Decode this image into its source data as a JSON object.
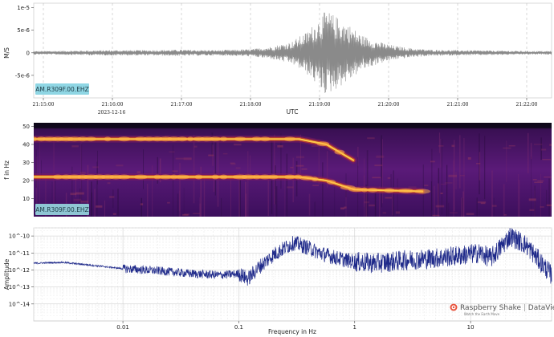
{
  "chart_data": [
    {
      "type": "line",
      "station_label": "AM.R309F.00.EHZ",
      "ylabel": "M/S",
      "xlabel": "UTC",
      "date_label": "2023-12-16",
      "x_ticks": [
        "21:15:00",
        "21:16:00",
        "21:17:00",
        "21:18:00",
        "21:19:00",
        "21:20:00",
        "21:21:00",
        "21:22:00"
      ],
      "y_ticks": [
        "1e-5",
        "5e-6",
        "0",
        "-5e-6"
      ],
      "ylim": [
        -1e-05,
        1.1e-05
      ],
      "envelope": {
        "x_minutes": [
          0,
          0.5,
          1,
          1.5,
          2,
          2.5,
          3,
          3.3,
          3.6,
          3.8,
          3.95,
          4.1,
          4.25,
          4.45,
          4.6,
          4.85,
          5.1,
          5.35,
          5.6,
          6,
          6.5,
          7,
          7.6
        ],
        "amplitude": [
          4e-07,
          5e-07,
          6e-07,
          6e-07,
          7e-07,
          6e-07,
          8e-07,
          1.4e-06,
          2.5e-06,
          4.5e-06,
          7e-06,
          9.5e-06,
          8e-06,
          6e-06,
          4e-06,
          2.5e-06,
          1.5e-06,
          1e-06,
          7e-07,
          6e-07,
          5e-07,
          4e-07,
          4e-07
        ]
      }
    },
    {
      "type": "heatmap",
      "station_label": "AM.R309F.00.EHZ",
      "ylabel": "f in Hz",
      "y_ticks": [
        "50",
        "40",
        "30",
        "20",
        "10"
      ],
      "ylim": [
        0,
        52
      ],
      "bands": [
        {
          "x_minutes": [
            0,
            3.7,
            4.1,
            4.5
          ],
          "freq_hz": [
            43,
            43,
            40,
            31
          ]
        },
        {
          "x_minutes": [
            0,
            3.7,
            4.1,
            4.5,
            5.5
          ],
          "freq_hz": [
            22,
            22,
            20,
            15,
            14
          ]
        }
      ]
    },
    {
      "type": "line",
      "ylabel": "Amplitude",
      "xlabel": "Frequency in Hz",
      "x_ticks": [
        "0.01",
        "0.1",
        "1",
        "10"
      ],
      "y_ticks": [
        "10^-10",
        "10^-11",
        "10^-12",
        "10^-13",
        "10^-14"
      ],
      "xscale": "log",
      "yscale": "log",
      "xlim": [
        0.0017,
        50
      ],
      "ylim": [
        1e-15,
        3e-10
      ],
      "x": [
        0.0017,
        0.003,
        0.005,
        0.01,
        0.02,
        0.04,
        0.07,
        0.1,
        0.12,
        0.15,
        0.2,
        0.25,
        0.3,
        0.4,
        0.5,
        0.7,
        1,
        1.5,
        2,
        3,
        5,
        8,
        12,
        15,
        18,
        22,
        30,
        50
      ],
      "y": [
        2.5e-12,
        2.8e-12,
        2e-12,
        1.2e-12,
        9e-13,
        6e-13,
        5e-13,
        6e-13,
        3e-13,
        1.5e-12,
        8e-12,
        2e-11,
        4e-11,
        2e-11,
        1e-11,
        5e-12,
        3e-12,
        2.5e-12,
        3e-12,
        4e-12,
        5e-12,
        7e-12,
        1e-11,
        5e-12,
        2e-11,
        1e-10,
        3e-11,
        5e-13
      ]
    }
  ],
  "logo": {
    "name": "Raspberry Shake",
    "product": "DataView",
    "tagline": "Watch the Earth Move"
  }
}
